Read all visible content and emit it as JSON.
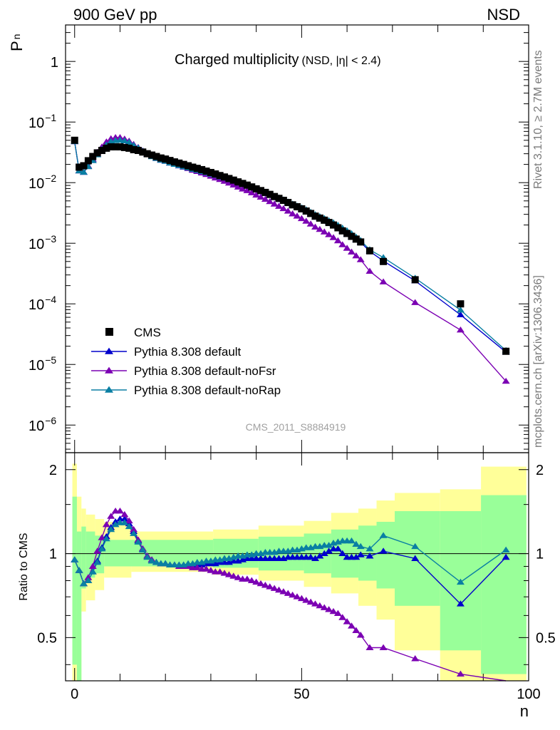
{
  "header": {
    "left": "900 GeV pp",
    "right": "NSD"
  },
  "plot_title": {
    "main": "Charged multiplicity",
    "sub": "(NSD, |η| < 2.4)"
  },
  "side_text": {
    "top": "Rivet 3.1.10, ≥ 2.7M events",
    "bottom": "mcplots.cern.ch [arXiv:1306.3436]"
  },
  "watermark": "CMS_2011_S8884919",
  "axes": {
    "y_top_label": "P",
    "y_top_sub": "n",
    "y_ratio_label": "Ratio to CMS",
    "x_label": "n",
    "x_ticks": [
      "0",
      "50",
      "100"
    ],
    "y_top_ticks": [
      {
        "base": "1",
        "exp": ""
      },
      {
        "base": "10",
        "exp": "−1"
      },
      {
        "base": "10",
        "exp": "−2"
      },
      {
        "base": "10",
        "exp": "−3"
      },
      {
        "base": "10",
        "exp": "−4"
      },
      {
        "base": "10",
        "exp": "−5"
      },
      {
        "base": "10",
        "exp": "−6"
      }
    ],
    "y_ratio_ticks": [
      "2",
      "1",
      "0.5"
    ]
  },
  "legend": [
    {
      "label": "CMS",
      "marker": "square",
      "color": "#000000"
    },
    {
      "label": "Pythia 8.308 default",
      "marker": "triangle",
      "color": "#0000cc"
    },
    {
      "label": "Pythia 8.308 default-noFsr",
      "marker": "triangle",
      "color": "#7b00b3"
    },
    {
      "label": "Pythia 8.308 default-noRap",
      "marker": "triangle",
      "color": "#0a7fa3"
    }
  ],
  "chart_data": {
    "type": "scatter",
    "x_scale": "linear",
    "y_scale": "log",
    "xlim": [
      -2,
      100
    ],
    "ylim": [
      3.5e-07,
      4
    ],
    "ratio_ylim": [
      0.35,
      2.3
    ],
    "ratio_scale": "log",
    "x": [
      0,
      1,
      2,
      3,
      4,
      5,
      6,
      7,
      8,
      9,
      10,
      11,
      12,
      13,
      14,
      15,
      16,
      17,
      18,
      19,
      20,
      21,
      22,
      23,
      24,
      25,
      26,
      27,
      28,
      29,
      30,
      31,
      32,
      33,
      34,
      35,
      36,
      37,
      38,
      39,
      40,
      41,
      42,
      43,
      44,
      45,
      46,
      47,
      48,
      49,
      50,
      51,
      52,
      53,
      54,
      55,
      56,
      57,
      58,
      59,
      60,
      61,
      62,
      63,
      65,
      68,
      75,
      85,
      95
    ],
    "data_values": [
      0.05,
      0.018,
      0.019,
      0.023,
      0.027,
      0.031,
      0.034,
      0.037,
      0.039,
      0.039,
      0.039,
      0.038,
      0.037,
      0.035,
      0.034,
      0.032,
      0.03,
      0.0285,
      0.027,
      0.0255,
      0.0245,
      0.0232,
      0.022,
      0.021,
      0.02,
      0.019,
      0.018,
      0.0172,
      0.0164,
      0.0155,
      0.0147,
      0.0139,
      0.0131,
      0.0124,
      0.0117,
      0.011,
      0.0103,
      0.0097,
      0.0091,
      0.0085,
      0.0079,
      0.0074,
      0.0069,
      0.0064,
      0.0059,
      0.0055,
      0.0051,
      0.0047,
      0.0043,
      0.004,
      0.0037,
      0.0034,
      0.0031,
      0.0028,
      0.0026,
      0.0024,
      0.0022,
      0.002,
      0.0018,
      0.0016,
      0.00145,
      0.0013,
      0.00117,
      0.00105,
      0.00075,
      0.0005,
      0.00025,
      0.0001,
      1.65e-05
    ],
    "band_inner": [
      {
        "x": [
          -0.5,
          0.5
        ],
        "lo": 0.4,
        "hi": 1.6
      },
      {
        "x": [
          0.5,
          1.5
        ],
        "lo": 0.3,
        "hi": 1.2
      },
      {
        "x": [
          1.5,
          2.5
        ],
        "lo": 0.75,
        "hi": 1.25
      },
      {
        "x": [
          2.5,
          4.5
        ],
        "lo": 0.82,
        "hi": 1.2
      },
      {
        "x": [
          4.5,
          6.5
        ],
        "lo": 0.85,
        "hi": 1.16
      },
      {
        "x": [
          6.5,
          30.5
        ],
        "lo": 0.9,
        "hi": 1.12
      },
      {
        "x": [
          30.5,
          40.5
        ],
        "lo": 0.89,
        "hi": 1.13
      },
      {
        "x": [
          40.5,
          50.5
        ],
        "lo": 0.87,
        "hi": 1.15
      },
      {
        "x": [
          50.5,
          56.5
        ],
        "lo": 0.85,
        "hi": 1.18
      },
      {
        "x": [
          56.5,
          62.5
        ],
        "lo": 0.82,
        "hi": 1.22
      },
      {
        "x": [
          62.5,
          66.5
        ],
        "lo": 0.8,
        "hi": 1.26
      },
      {
        "x": [
          66.5,
          70.5
        ],
        "lo": 0.75,
        "hi": 1.3
      },
      {
        "x": [
          70.5,
          80.5
        ],
        "lo": 0.65,
        "hi": 1.42
      },
      {
        "x": [
          80.5,
          89.5
        ],
        "lo": 0.45,
        "hi": 1.42
      },
      {
        "x": [
          89.5,
          99.5
        ],
        "lo": 0.37,
        "hi": 1.62
      }
    ],
    "band_outer": [
      {
        "x": [
          -0.5,
          0.5
        ],
        "lo": 0.35,
        "hi": 2.1
      },
      {
        "x": [
          0.5,
          1.5
        ],
        "lo": 0.35,
        "hi": 1.6
      },
      {
        "x": [
          1.5,
          2.5
        ],
        "lo": 0.62,
        "hi": 1.45
      },
      {
        "x": [
          2.5,
          4.5
        ],
        "lo": 0.68,
        "hi": 1.38
      },
      {
        "x": [
          4.5,
          6.5
        ],
        "lo": 0.74,
        "hi": 1.33
      },
      {
        "x": [
          6.5,
          12.5
        ],
        "lo": 0.82,
        "hi": 1.3
      },
      {
        "x": [
          12.5,
          30.5
        ],
        "lo": 0.86,
        "hi": 1.2
      },
      {
        "x": [
          30.5,
          40.5
        ],
        "lo": 0.84,
        "hi": 1.22
      },
      {
        "x": [
          40.5,
          50.5
        ],
        "lo": 0.8,
        "hi": 1.26
      },
      {
        "x": [
          50.5,
          56.5
        ],
        "lo": 0.76,
        "hi": 1.31
      },
      {
        "x": [
          56.5,
          62.5
        ],
        "lo": 0.72,
        "hi": 1.4
      },
      {
        "x": [
          62.5,
          66.5
        ],
        "lo": 0.65,
        "hi": 1.45
      },
      {
        "x": [
          66.5,
          70.5
        ],
        "lo": 0.58,
        "hi": 1.55
      },
      {
        "x": [
          70.5,
          80.5
        ],
        "lo": 0.45,
        "hi": 1.65
      },
      {
        "x": [
          80.5,
          89.5
        ],
        "lo": 0.35,
        "hi": 1.7
      },
      {
        "x": [
          89.5,
          99.5
        ],
        "lo": 0.35,
        "hi": 2.05
      }
    ],
    "series": [
      {
        "name": "Pythia 8.308 default",
        "color": "#0000cc",
        "ratio": [
          0.95,
          0.87,
          0.78,
          0.8,
          0.86,
          0.94,
          1.05,
          1.15,
          1.24,
          1.3,
          1.33,
          1.33,
          1.28,
          1.2,
          1.11,
          1.04,
          0.98,
          0.95,
          0.93,
          0.92,
          0.92,
          0.91,
          0.91,
          0.91,
          0.91,
          0.91,
          0.91,
          0.91,
          0.91,
          0.92,
          0.92,
          0.92,
          0.93,
          0.93,
          0.93,
          0.94,
          0.94,
          0.95,
          0.96,
          0.96,
          0.96,
          0.96,
          0.96,
          0.96,
          0.96,
          0.96,
          0.96,
          0.97,
          0.97,
          0.97,
          0.97,
          0.97,
          0.97,
          0.96,
          0.98,
          1.0,
          1.02,
          1.04,
          1.04,
          1.0,
          0.97,
          0.97,
          0.97,
          0.99,
          0.98,
          1.02,
          0.96,
          0.66,
          0.97
        ]
      },
      {
        "name": "Pythia 8.308 default-noFsr",
        "color": "#7b00b3",
        "ratio": [
          0.95,
          0.87,
          0.78,
          0.82,
          0.9,
          1.02,
          1.14,
          1.27,
          1.36,
          1.42,
          1.42,
          1.38,
          1.31,
          1.22,
          1.12,
          1.04,
          0.98,
          0.95,
          0.93,
          0.92,
          0.92,
          0.91,
          0.91,
          0.9,
          0.9,
          0.9,
          0.89,
          0.89,
          0.88,
          0.88,
          0.87,
          0.86,
          0.86,
          0.85,
          0.84,
          0.83,
          0.82,
          0.81,
          0.81,
          0.8,
          0.79,
          0.78,
          0.77,
          0.76,
          0.75,
          0.74,
          0.73,
          0.72,
          0.71,
          0.7,
          0.69,
          0.68,
          0.67,
          0.66,
          0.65,
          0.64,
          0.63,
          0.62,
          0.61,
          0.59,
          0.57,
          0.55,
          0.53,
          0.51,
          0.46,
          0.46,
          0.42,
          0.37,
          0.32
        ]
      },
      {
        "name": "Pythia 8.308 default-noRap",
        "color": "#0a7fa3",
        "ratio": [
          0.95,
          0.87,
          0.78,
          0.8,
          0.86,
          0.93,
          1.04,
          1.13,
          1.22,
          1.27,
          1.29,
          1.29,
          1.25,
          1.18,
          1.1,
          1.03,
          0.97,
          0.94,
          0.93,
          0.92,
          0.92,
          0.91,
          0.91,
          0.91,
          0.91,
          0.92,
          0.92,
          0.93,
          0.93,
          0.94,
          0.94,
          0.95,
          0.95,
          0.96,
          0.96,
          0.97,
          0.98,
          0.98,
          0.99,
          0.99,
          1.0,
          1.0,
          1.01,
          1.01,
          1.01,
          1.02,
          1.02,
          1.02,
          1.03,
          1.03,
          1.04,
          1.05,
          1.05,
          1.06,
          1.06,
          1.07,
          1.07,
          1.09,
          1.1,
          1.11,
          1.11,
          1.11,
          1.08,
          1.06,
          1.04,
          1.16,
          1.06,
          0.79,
          1.03
        ]
      }
    ]
  }
}
